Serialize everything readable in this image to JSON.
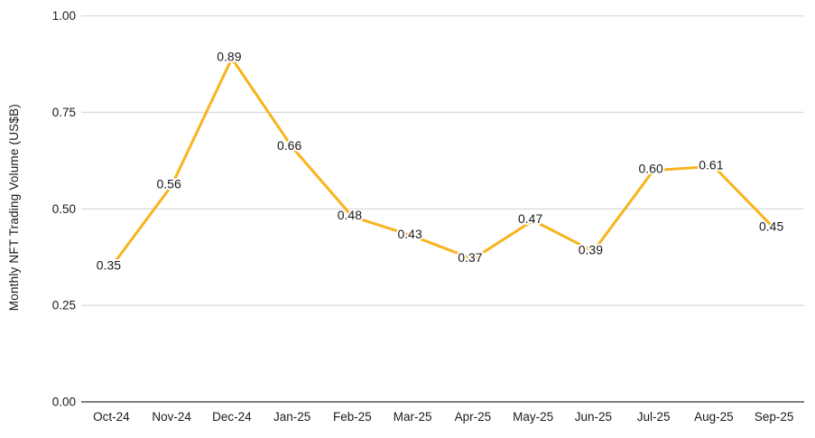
{
  "chart_data": {
    "type": "line",
    "title": "",
    "xlabel": "",
    "ylabel": "Monthly NFT Trading Volume (US$B)",
    "categories": [
      "Oct-24",
      "Nov-24",
      "Dec-24",
      "Jan-25",
      "Feb-25",
      "Mar-25",
      "Apr-25",
      "May-25",
      "Jun-25",
      "Jul-25",
      "Aug-25",
      "Sep-25"
    ],
    "values": [
      0.35,
      0.56,
      0.89,
      0.66,
      0.48,
      0.43,
      0.37,
      0.47,
      0.39,
      0.6,
      0.61,
      0.45
    ],
    "point_labels": [
      "0.35",
      "0.56",
      "0.89",
      "0.66",
      "0.48",
      "0.43",
      "0.37",
      "0.47",
      "0.39",
      "0.60",
      "0.61",
      "0.45"
    ],
    "ylim": [
      0,
      1
    ],
    "yticks": [
      {
        "value": 0.0,
        "label": "0.00"
      },
      {
        "value": 0.25,
        "label": "0.25"
      },
      {
        "value": 0.5,
        "label": "0.50"
      },
      {
        "value": 0.75,
        "label": "0.75"
      },
      {
        "value": 1.0,
        "label": "1.00"
      }
    ],
    "grid": true,
    "legend_position": "none",
    "line_color": "#F8B41C",
    "colors": {
      "gridline": "#DBDBDB",
      "baseline": "#6E6E6E",
      "text": "#1A1A1A",
      "annotation_halo": "#FFFFFF",
      "background": "#FFFFFF"
    }
  }
}
